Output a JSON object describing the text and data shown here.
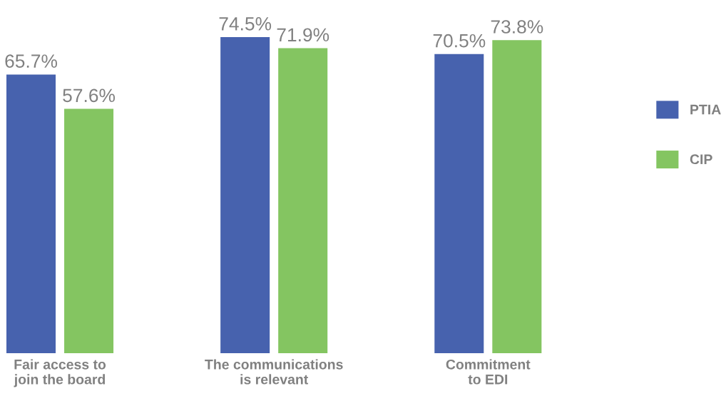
{
  "chart_data": {
    "type": "bar",
    "categories": [
      "Fair access to\njoin the board",
      "The communications\nis relevant",
      "Commitment\nto EDI"
    ],
    "series": [
      {
        "name": "PTIA",
        "color": "#4762ae",
        "values": [
          65.7,
          74.5,
          70.5
        ],
        "value_labels": [
          "65.7%",
          "74.5%",
          "70.5%"
        ]
      },
      {
        "name": "CIP",
        "color": "#84c561",
        "values": [
          57.6,
          71.9,
          73.8
        ],
        "value_labels": [
          "57.6%",
          "71.9%",
          "73.8%"
        ]
      }
    ],
    "legend": "right",
    "grid": false
  }
}
